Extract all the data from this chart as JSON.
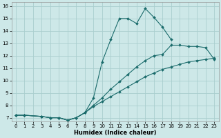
{
  "xlabel": "Humidex (Indice chaleur)",
  "bg_color": "#cde8e8",
  "grid_color": "#aacece",
  "line_color": "#1a6b6b",
  "xlim": [
    -0.5,
    23.5
  ],
  "ylim": [
    6.7,
    16.3
  ],
  "xticks": [
    0,
    1,
    2,
    3,
    4,
    5,
    6,
    7,
    8,
    9,
    10,
    11,
    12,
    13,
    14,
    15,
    16,
    17,
    18,
    19,
    20,
    21,
    22,
    23
  ],
  "yticks": [
    7,
    8,
    9,
    10,
    11,
    12,
    13,
    14,
    15,
    16
  ],
  "curve1_x": [
    0,
    1,
    3,
    4,
    5,
    6,
    7,
    8,
    9,
    10,
    11,
    12,
    13,
    14,
    15,
    16,
    17,
    18
  ],
  "curve1_y": [
    7.2,
    7.2,
    7.1,
    7.0,
    7.0,
    6.8,
    7.0,
    7.4,
    8.6,
    11.5,
    13.3,
    15.0,
    15.0,
    14.6,
    15.8,
    15.1,
    14.3,
    13.3
  ],
  "curve2_x": [
    0,
    1,
    3,
    4,
    5,
    6,
    7,
    8,
    9,
    10,
    11,
    12,
    13,
    14,
    15,
    16,
    17,
    18,
    19,
    20,
    21,
    22,
    23
  ],
  "curve2_y": [
    7.2,
    7.2,
    7.1,
    7.0,
    7.0,
    6.8,
    7.0,
    7.4,
    8.0,
    8.6,
    9.3,
    9.9,
    10.5,
    11.1,
    11.6,
    12.0,
    12.1,
    12.85,
    12.85,
    12.75,
    12.75,
    12.65,
    11.7
  ],
  "curve3_x": [
    0,
    1,
    3,
    4,
    5,
    6,
    7,
    8,
    9,
    10,
    11,
    12,
    13,
    14,
    15,
    16,
    17,
    18,
    19,
    20,
    21,
    22,
    23
  ],
  "curve3_y": [
    7.2,
    7.2,
    7.1,
    7.0,
    7.0,
    6.8,
    7.0,
    7.4,
    7.9,
    8.3,
    8.7,
    9.1,
    9.5,
    9.9,
    10.3,
    10.6,
    10.9,
    11.1,
    11.3,
    11.5,
    11.6,
    11.7,
    11.8
  ]
}
